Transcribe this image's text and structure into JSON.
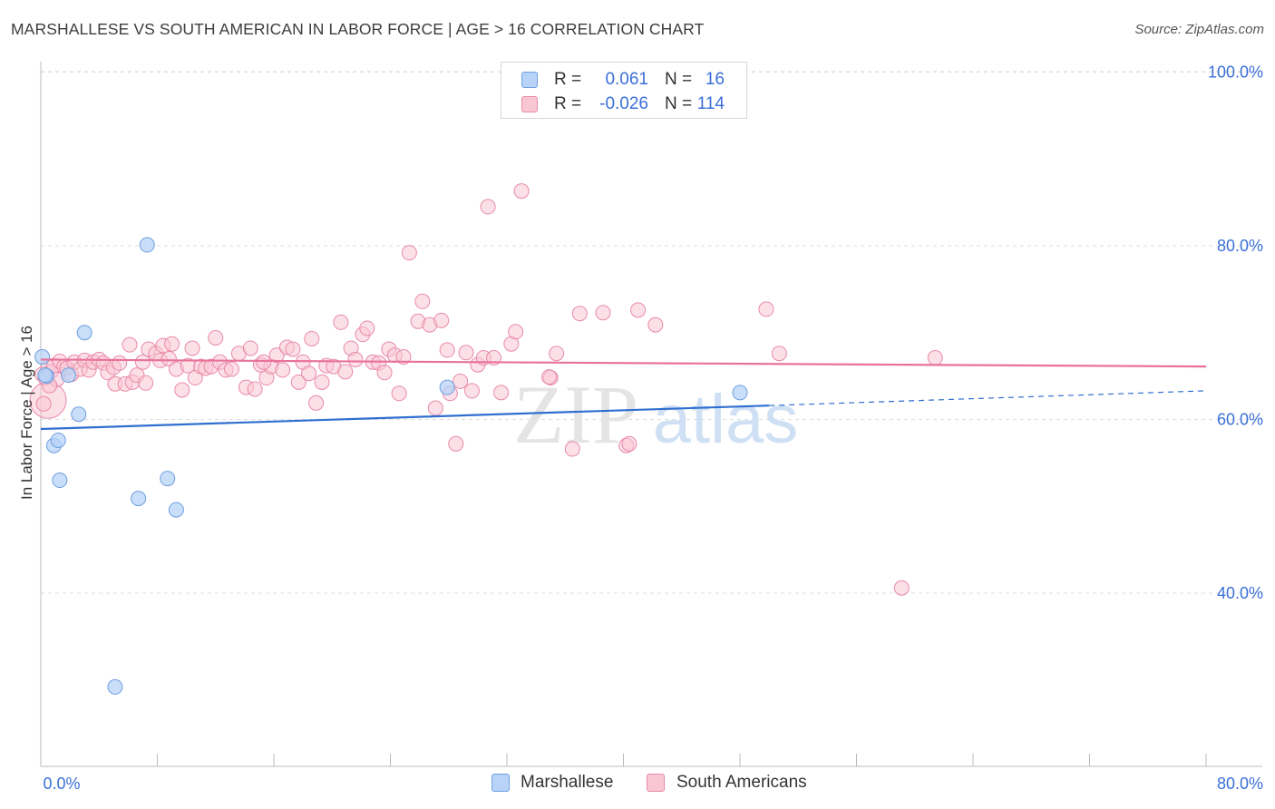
{
  "title": "MARSHALLESE VS SOUTH AMERICAN IN LABOR FORCE | AGE > 16 CORRELATION CHART",
  "source": "Source: ZipAtlas.com",
  "watermark": {
    "part1": "ZIP",
    "part2": "atlas"
  },
  "colors": {
    "marshallese_fill": "#b7d3f7",
    "marshallese_stroke": "#6f9fe0",
    "marshallese_line": "#2f6fd0",
    "south_fill": "#f9c6d6",
    "south_stroke": "#e88aa8",
    "south_line": "#e8729a",
    "value_text": "#3a6fd8",
    "grid": "#dddddd"
  },
  "legend_top": {
    "rows": [
      {
        "r_label": "R =",
        "r_value": "0.061",
        "n_label": "N =",
        "n_value": "16"
      },
      {
        "r_label": "R =",
        "r_value": "-0.026",
        "n_label": "N =",
        "n_value": "114"
      }
    ]
  },
  "legend_bottom": {
    "items": [
      "Marshallese",
      "South Americans"
    ]
  },
  "chart_data": {
    "type": "scatter",
    "xlabel": "",
    "ylabel": "In Labor Force | Age > 16",
    "xlim": [
      0,
      80
    ],
    "ylim": [
      20,
      102
    ],
    "x_tick_labels": [
      "0.0%",
      "80.0%"
    ],
    "y_ticks": [
      40,
      60,
      80,
      100
    ],
    "y_tick_labels": [
      "40.0%",
      "60.0%",
      "80.0%",
      "100.0%"
    ],
    "grid": true,
    "series": [
      {
        "name": "Marshallese",
        "points": [
          [
            0.1,
            67.2
          ],
          [
            0.4,
            65.0
          ],
          [
            0.9,
            57.0
          ],
          [
            1.2,
            57.6
          ],
          [
            1.3,
            53.0
          ],
          [
            1.9,
            65.1
          ],
          [
            2.6,
            60.6
          ],
          [
            3.0,
            70.0
          ],
          [
            5.1,
            29.2
          ],
          [
            6.7,
            50.9
          ],
          [
            7.3,
            80.1
          ],
          [
            8.7,
            53.2
          ],
          [
            9.3,
            49.6
          ],
          [
            27.9,
            63.7
          ],
          [
            48.0,
            63.1
          ],
          [
            0.3,
            65.1
          ]
        ],
        "trend": {
          "x0": 0,
          "y0": 58.9,
          "x1": 50,
          "y1": 61.6,
          "dash_to_x": 80,
          "dash_to_y": 63.3
        }
      },
      {
        "name": "South Americans",
        "points": [
          [
            0.1,
            65.2
          ],
          [
            0.3,
            64.8
          ],
          [
            0.5,
            66.0
          ],
          [
            0.7,
            65.5
          ],
          [
            0.9,
            66.2
          ],
          [
            1.1,
            64.6
          ],
          [
            1.3,
            66.7
          ],
          [
            1.6,
            66.1
          ],
          [
            1.8,
            65.9
          ],
          [
            2.1,
            65.2
          ],
          [
            2.3,
            66.6
          ],
          [
            2.7,
            65.8
          ],
          [
            3.0,
            66.8
          ],
          [
            3.3,
            65.7
          ],
          [
            3.6,
            66.6
          ],
          [
            4.0,
            66.9
          ],
          [
            4.3,
            66.5
          ],
          [
            4.6,
            65.4
          ],
          [
            5.0,
            66.0
          ],
          [
            5.1,
            64.1
          ],
          [
            5.4,
            66.5
          ],
          [
            5.8,
            64.1
          ],
          [
            6.1,
            68.6
          ],
          [
            6.3,
            64.3
          ],
          [
            6.6,
            65.1
          ],
          [
            7.0,
            66.6
          ],
          [
            7.4,
            68.1
          ],
          [
            7.9,
            67.6
          ],
          [
            8.2,
            66.8
          ],
          [
            8.4,
            68.5
          ],
          [
            8.8,
            67.0
          ],
          [
            9.0,
            68.7
          ],
          [
            9.3,
            65.8
          ],
          [
            9.7,
            63.4
          ],
          [
            10.1,
            66.2
          ],
          [
            10.4,
            68.2
          ],
          [
            10.6,
            64.8
          ],
          [
            11.0,
            66.1
          ],
          [
            11.3,
            65.9
          ],
          [
            11.7,
            66.1
          ],
          [
            12.0,
            69.4
          ],
          [
            12.3,
            66.6
          ],
          [
            12.7,
            65.7
          ],
          [
            13.1,
            65.8
          ],
          [
            13.6,
            67.6
          ],
          [
            14.1,
            63.7
          ],
          [
            14.4,
            68.2
          ],
          [
            14.7,
            63.5
          ],
          [
            15.1,
            66.3
          ],
          [
            15.5,
            64.8
          ],
          [
            15.8,
            66.1
          ],
          [
            16.2,
            67.4
          ],
          [
            16.6,
            65.7
          ],
          [
            16.9,
            68.3
          ],
          [
            17.3,
            68.1
          ],
          [
            17.7,
            64.3
          ],
          [
            18.0,
            66.6
          ],
          [
            18.4,
            65.3
          ],
          [
            18.6,
            69.3
          ],
          [
            18.9,
            61.9
          ],
          [
            19.3,
            64.3
          ],
          [
            19.6,
            66.2
          ],
          [
            20.1,
            66.1
          ],
          [
            20.6,
            71.2
          ],
          [
            20.9,
            65.5
          ],
          [
            21.3,
            68.2
          ],
          [
            21.6,
            66.9
          ],
          [
            22.1,
            69.8
          ],
          [
            22.4,
            70.5
          ],
          [
            22.8,
            66.6
          ],
          [
            23.2,
            66.5
          ],
          [
            23.6,
            65.4
          ],
          [
            23.9,
            68.1
          ],
          [
            24.3,
            67.4
          ],
          [
            24.6,
            63.0
          ],
          [
            24.9,
            67.2
          ],
          [
            25.3,
            79.2
          ],
          [
            25.9,
            71.3
          ],
          [
            26.2,
            73.6
          ],
          [
            26.7,
            70.9
          ],
          [
            27.1,
            61.3
          ],
          [
            27.5,
            71.4
          ],
          [
            27.9,
            68.0
          ],
          [
            28.1,
            63.0
          ],
          [
            28.5,
            57.2
          ],
          [
            28.8,
            64.4
          ],
          [
            29.2,
            67.7
          ],
          [
            29.6,
            63.3
          ],
          [
            30.0,
            66.3
          ],
          [
            30.4,
            67.1
          ],
          [
            30.7,
            84.5
          ],
          [
            31.1,
            67.1
          ],
          [
            31.6,
            63.1
          ],
          [
            32.3,
            68.7
          ],
          [
            32.6,
            70.1
          ],
          [
            33.0,
            86.3
          ],
          [
            35.0,
            64.8
          ],
          [
            35.4,
            67.6
          ],
          [
            36.5,
            56.6
          ],
          [
            37.0,
            72.2
          ],
          [
            38.6,
            72.3
          ],
          [
            40.2,
            57.0
          ],
          [
            40.4,
            57.2
          ],
          [
            41.0,
            72.6
          ],
          [
            42.2,
            70.9
          ],
          [
            49.8,
            72.7
          ],
          [
            50.7,
            67.6
          ],
          [
            59.1,
            40.6
          ],
          [
            61.4,
            67.1
          ],
          [
            0.2,
            61.8
          ],
          [
            0.6,
            63.9
          ],
          [
            7.2,
            64.2
          ],
          [
            15.3,
            66.6
          ],
          [
            34.9,
            64.9
          ]
        ],
        "big_point": [
          0.0,
          61.8
        ],
        "trend": {
          "x0": 0,
          "y0": 66.9,
          "x1": 80,
          "y1": 66.1
        }
      }
    ]
  },
  "axes": {
    "ylabel": "In Labor Force | Age > 16",
    "x_left_label": "0.0%",
    "x_right_label": "80.0%"
  }
}
